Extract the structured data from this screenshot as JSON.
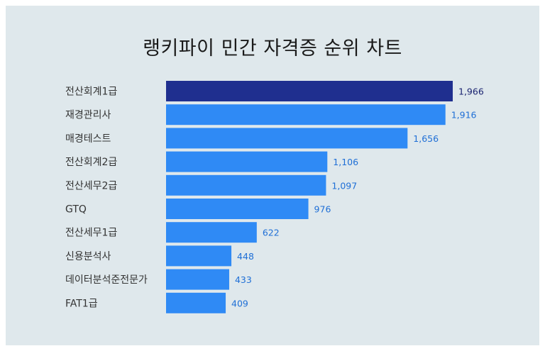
{
  "chart_data": {
    "type": "bar",
    "orientation": "horizontal",
    "title": "랭키파이 민간 자격증 순위 차트",
    "categories": [
      "전산회계1급",
      "재경관리사",
      "매경테스트",
      "전산회계2급",
      "전산세무2급",
      "GTQ",
      "전산세무1급",
      "신용분석사",
      "데이터분석준전문가",
      "FAT1급"
    ],
    "values": [
      1966,
      1916,
      1656,
      1106,
      1097,
      976,
      622,
      448,
      433,
      409
    ],
    "value_labels": [
      "1,966",
      "1,916",
      "1,656",
      "1,106",
      "1,097",
      "976",
      "622",
      "448",
      "433",
      "409"
    ],
    "xlim": [
      0,
      2000
    ],
    "grid": false,
    "legend": "none",
    "colors": {
      "highlight_bar": "#1f2f8f",
      "bar": "#2f8af5",
      "highlight_label": "#1a2370",
      "label": "#1f6fd6",
      "background": "#dfe8ec"
    }
  }
}
